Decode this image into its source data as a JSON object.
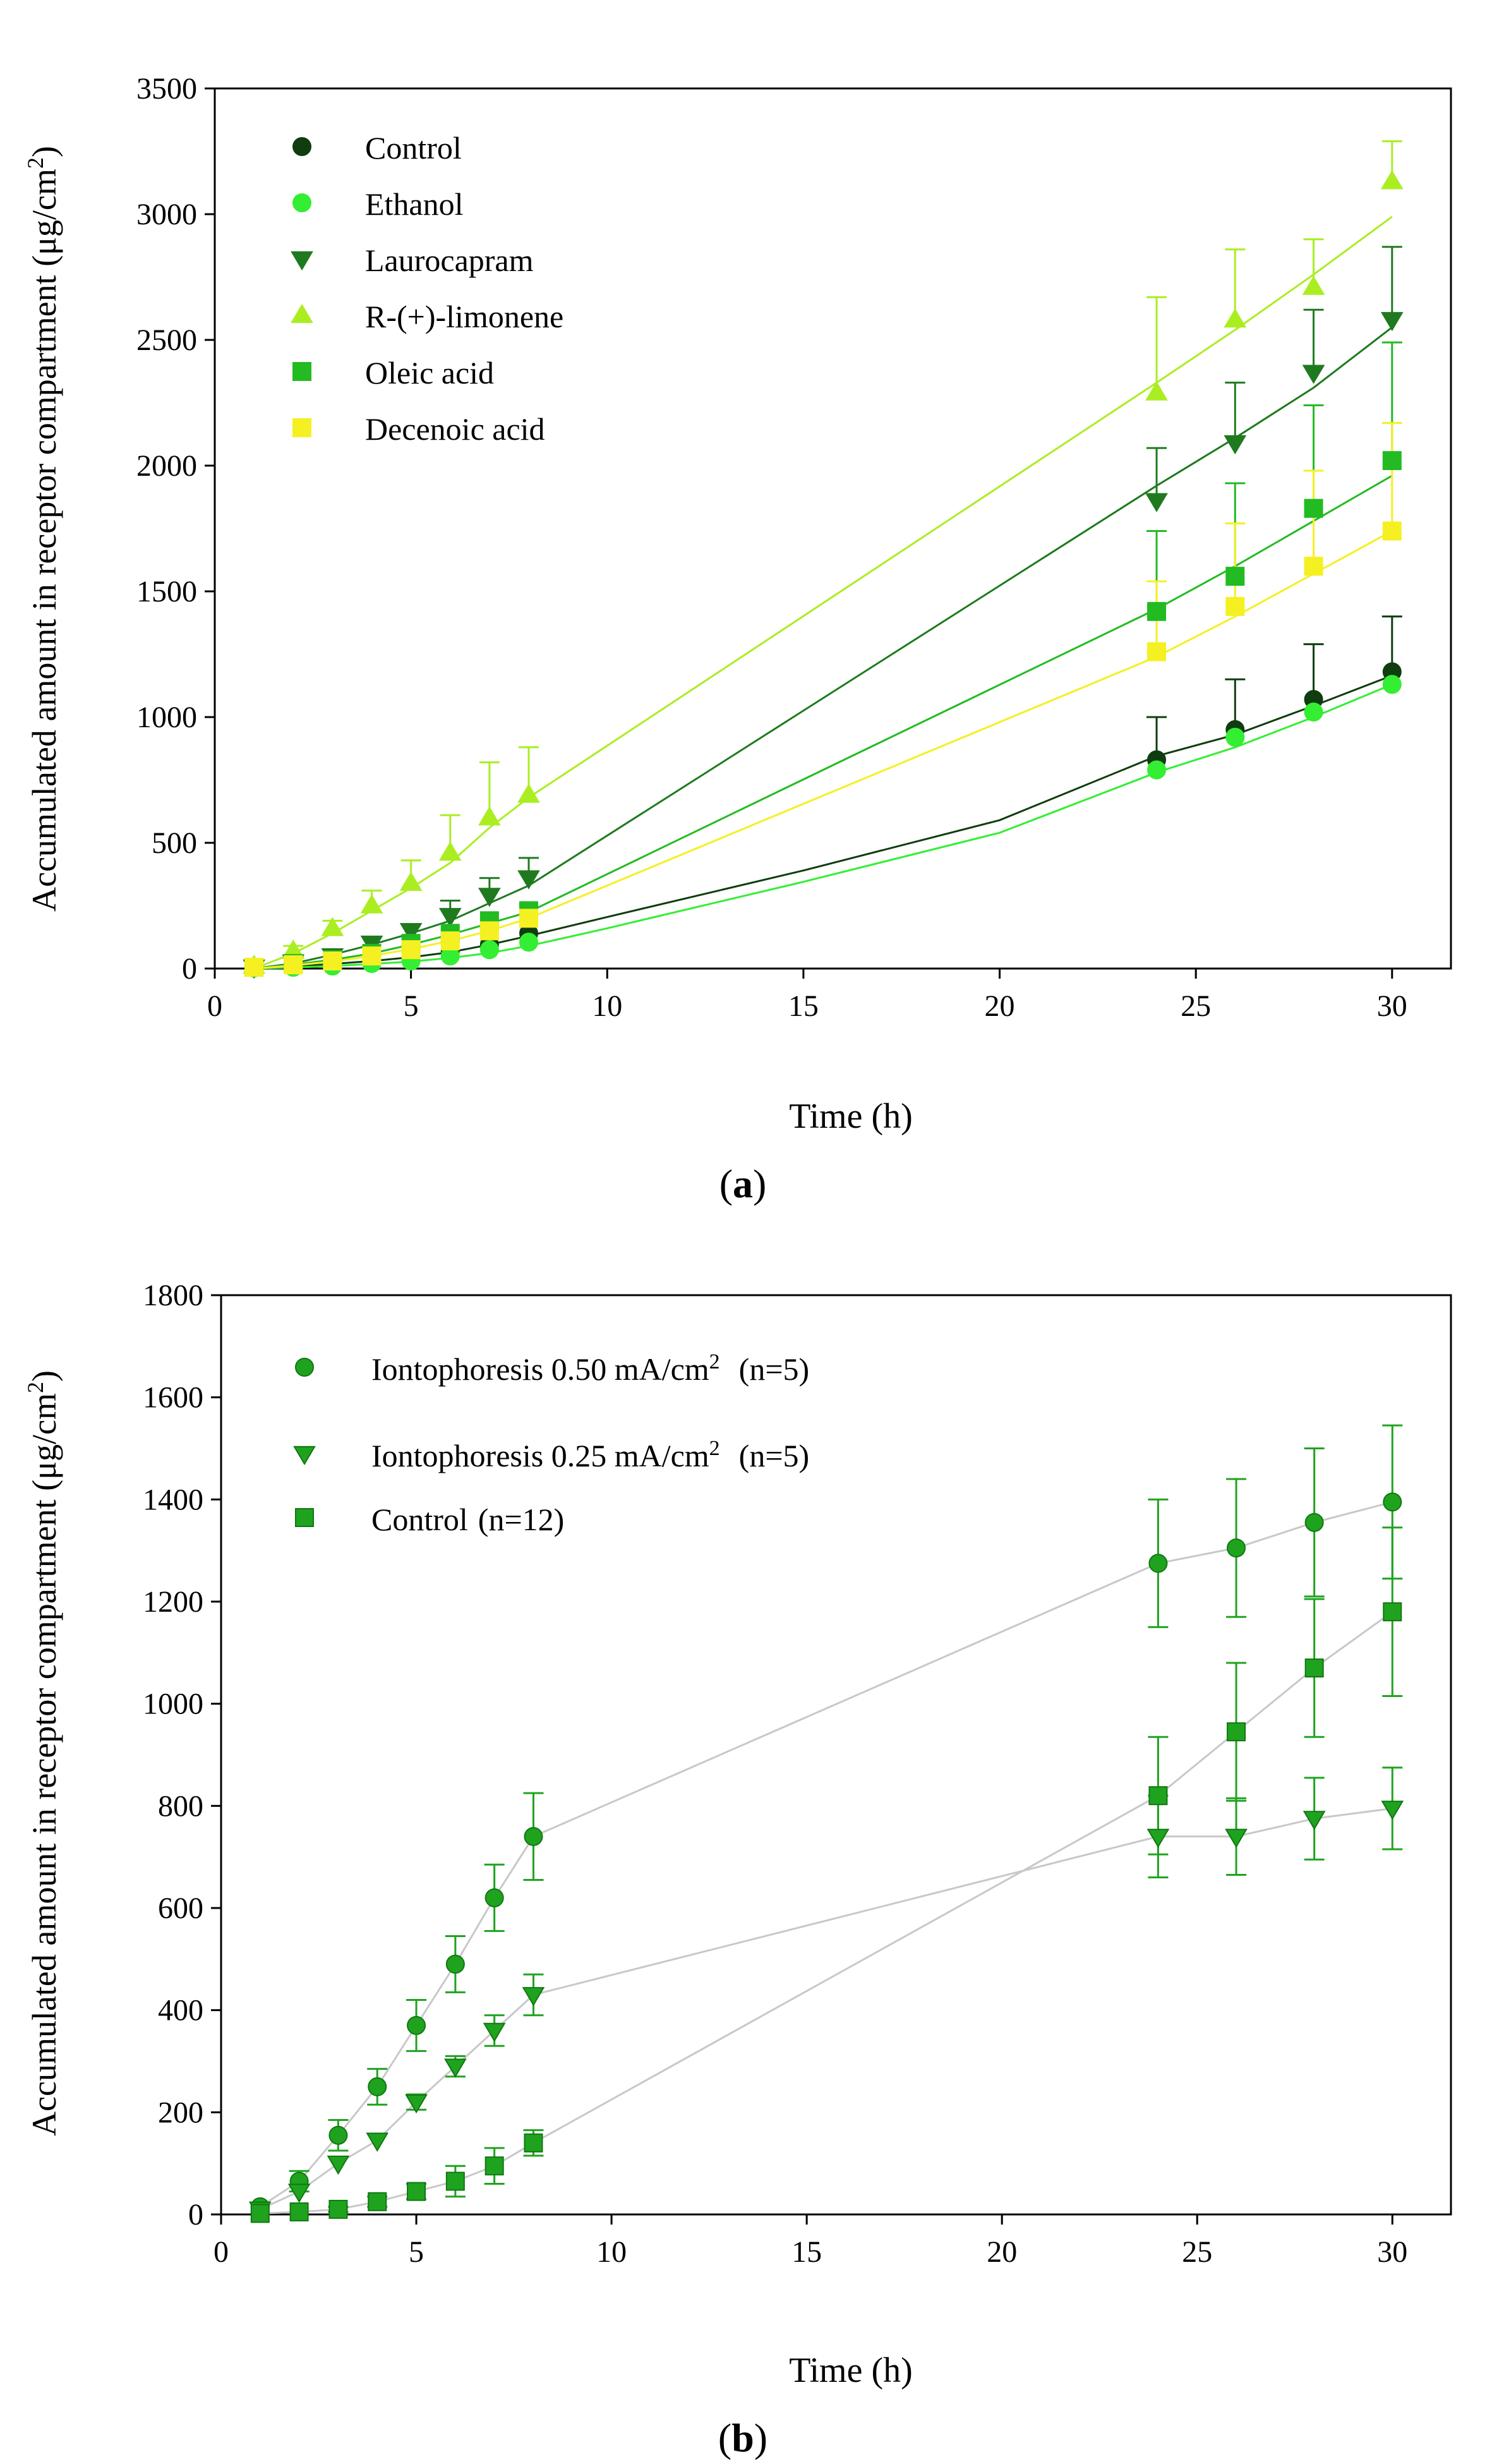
{
  "colors": {
    "control_dark": "#0f3d0f",
    "ethanol": "#33ee33",
    "laurocapram": "#1f7a1f",
    "limonene": "#aaee22",
    "oleic": "#22bb22",
    "decenoic": "#f5f022",
    "grey_line": "#c8c8c8",
    "green_b": "#1fa31f"
  },
  "chart_data": [
    {
      "type": "scatter",
      "panel_label": "a",
      "xlabel": "Time (h)",
      "ylabel": "Accumulated amount in receptor compartment (μg/cm",
      "ylabel_sup": "2",
      "ylabel_end": ")",
      "xlim": [
        0,
        31.5
      ],
      "ylim": [
        0,
        3500
      ],
      "xticks": [
        0,
        5,
        10,
        15,
        20,
        25,
        30
      ],
      "yticks": [
        0,
        500,
        1000,
        1500,
        2000,
        2500,
        3000,
        3500
      ],
      "x": [
        1,
        2,
        3,
        4,
        5,
        6,
        7,
        8,
        24,
        26,
        28,
        30
      ],
      "legend": [
        {
          "label": "Control",
          "marker": "circle",
          "color": "#0f3d0f"
        },
        {
          "label": "Ethanol",
          "marker": "circle",
          "color": "#33ee33"
        },
        {
          "label": "Laurocapram",
          "marker": "triangle-down",
          "color": "#1f7a1f"
        },
        {
          "label": "R-(+)-limonene",
          "marker": "triangle-up",
          "color": "#aaee22"
        },
        {
          "label": "Oleic acid",
          "marker": "square",
          "color": "#22bb22"
        },
        {
          "label": "Decenoic acid",
          "marker": "square",
          "color": "#f5f022"
        }
      ],
      "series": [
        {
          "name": "Control",
          "marker": "circle",
          "color": "#0f3d0f",
          "values": [
            5,
            10,
            15,
            25,
            45,
            70,
            95,
            140,
            830,
            950,
            1070,
            1180
          ],
          "err": [
            0,
            0,
            0,
            0,
            0,
            0,
            0,
            0,
            170,
            200,
            220,
            220
          ],
          "fit": [
            [
              1,
              0
            ],
            [
              2,
              8
            ],
            [
              3,
              18
            ],
            [
              4,
              30
            ],
            [
              5,
              45
            ],
            [
              6,
              65
            ],
            [
              7,
              95
            ],
            [
              8,
              130
            ],
            [
              10,
              205
            ],
            [
              15,
              390
            ],
            [
              20,
              590
            ],
            [
              24,
              845
            ],
            [
              26,
              930
            ],
            [
              28,
              1045
            ],
            [
              30,
              1165
            ]
          ]
        },
        {
          "name": "Ethanol",
          "marker": "circle",
          "color": "#33ee33",
          "values": [
            2,
            5,
            10,
            20,
            30,
            50,
            75,
            105,
            790,
            920,
            1020,
            1130
          ],
          "err": [
            0,
            0,
            0,
            0,
            0,
            0,
            0,
            0,
            0,
            0,
            0,
            0
          ],
          "fit": [
            [
              1,
              0
            ],
            [
              2,
              4
            ],
            [
              3,
              10
            ],
            [
              4,
              18
            ],
            [
              5,
              28
            ],
            [
              6,
              42
            ],
            [
              7,
              62
            ],
            [
              8,
              90
            ],
            [
              10,
              160
            ],
            [
              15,
              345
            ],
            [
              20,
              540
            ],
            [
              24,
              780
            ],
            [
              26,
              880
            ],
            [
              28,
              1000
            ],
            [
              30,
              1130
            ]
          ]
        },
        {
          "name": "Laurocapram",
          "marker": "triangle-down",
          "color": "#1f7a1f",
          "values": [
            5,
            25,
            50,
            100,
            150,
            210,
            290,
            360,
            1860,
            2090,
            2370,
            2580
          ],
          "err": [
            0,
            0,
            0,
            0,
            0,
            60,
            70,
            80,
            210,
            240,
            250,
            290
          ],
          "fit": [
            [
              1,
              0
            ],
            [
              2,
              20
            ],
            [
              3,
              55
            ],
            [
              4,
              95
            ],
            [
              5,
              140
            ],
            [
              6,
              190
            ],
            [
              7,
              260
            ],
            [
              8,
              330
            ],
            [
              24,
              1920
            ],
            [
              26,
              2110
            ],
            [
              28,
              2310
            ],
            [
              30,
              2550
            ]
          ]
        },
        {
          "name": "R-(+)-limonene",
          "marker": "triangle-up",
          "color": "#aaee22",
          "values": [
            10,
            70,
            160,
            250,
            340,
            460,
            600,
            690,
            2290,
            2580,
            2710,
            3130
          ],
          "err": [
            0,
            20,
            30,
            60,
            90,
            150,
            220,
            190,
            380,
            280,
            190,
            160
          ],
          "fit": [
            [
              1,
              0
            ],
            [
              2,
              60
            ],
            [
              3,
              140
            ],
            [
              4,
              230
            ],
            [
              5,
              320
            ],
            [
              6,
              420
            ],
            [
              7,
              560
            ],
            [
              8,
              680
            ],
            [
              24,
              2330
            ],
            [
              26,
              2540
            ],
            [
              28,
              2760
            ],
            [
              30,
              2990
            ]
          ]
        },
        {
          "name": "Oleic acid",
          "marker": "square",
          "color": "#22bb22",
          "values": [
            5,
            20,
            35,
            60,
            100,
            140,
            190,
            230,
            1420,
            1560,
            1830,
            2020
          ],
          "err": [
            0,
            0,
            0,
            0,
            0,
            0,
            0,
            0,
            320,
            370,
            410,
            470
          ],
          "fit": [
            [
              1,
              0
            ],
            [
              2,
              15
            ],
            [
              3,
              35
            ],
            [
              4,
              60
            ],
            [
              5,
              95
            ],
            [
              6,
              135
            ],
            [
              7,
              180
            ],
            [
              8,
              225
            ],
            [
              24,
              1430
            ],
            [
              26,
              1600
            ],
            [
              28,
              1780
            ],
            [
              30,
              1960
            ]
          ]
        },
        {
          "name": "Decenoic acid",
          "marker": "square",
          "color": "#f5f022",
          "values": [
            5,
            15,
            30,
            50,
            75,
            110,
            150,
            200,
            1260,
            1440,
            1600,
            1740
          ],
          "err": [
            0,
            0,
            0,
            0,
            0,
            0,
            0,
            0,
            280,
            330,
            380,
            430
          ],
          "fit": [
            [
              1,
              0
            ],
            [
              2,
              12
            ],
            [
              3,
              28
            ],
            [
              4,
              50
            ],
            [
              5,
              78
            ],
            [
              6,
              110
            ],
            [
              7,
              150
            ],
            [
              8,
              200
            ],
            [
              24,
              1240
            ],
            [
              26,
              1400
            ],
            [
              28,
              1570
            ],
            [
              30,
              1740
            ]
          ]
        }
      ]
    },
    {
      "type": "line",
      "panel_label": "b",
      "xlabel": "Time (h)",
      "ylabel": "Accumulated amount in receptor compartment (μg/cm",
      "ylabel_sup": "2",
      "ylabel_end": ")",
      "xlim": [
        0,
        31.5
      ],
      "ylim": [
        0,
        1800
      ],
      "xticks": [
        0,
        5,
        10,
        15,
        20,
        25,
        30
      ],
      "yticks": [
        0,
        200,
        400,
        600,
        800,
        1000,
        1200,
        1400,
        1600,
        1800
      ],
      "x": [
        1,
        2,
        3,
        4,
        5,
        6,
        7,
        8,
        24,
        26,
        28,
        30
      ],
      "legend": [
        {
          "label": "Iontophoresis 0.50 mA/cm",
          "sup": "2",
          "suffix": "(n=5)",
          "marker": "circle"
        },
        {
          "label": "Iontophoresis 0.25 mA/cm",
          "sup": "2",
          "suffix": "(n=5)",
          "marker": "triangle-down"
        },
        {
          "label": "Control",
          "sup": "",
          "suffix": "(n=12)",
          "marker": "square"
        }
      ],
      "series": [
        {
          "name": "Iontophoresis 0.50 mA/cm2 (n=5)",
          "marker": "circle",
          "values": [
            15,
            65,
            155,
            250,
            370,
            490,
            620,
            740,
            1275,
            1305,
            1355,
            1395
          ],
          "err": [
            0,
            20,
            30,
            35,
            50,
            55,
            65,
            85,
            125,
            135,
            145,
            150
          ]
        },
        {
          "name": "Iontophoresis 0.25 mA/cm2 (n=5)",
          "marker": "triangle-down",
          "values": [
            10,
            45,
            100,
            145,
            220,
            290,
            360,
            430,
            740,
            740,
            775,
            795
          ],
          "err": [
            0,
            0,
            0,
            0,
            15,
            20,
            30,
            40,
            80,
            75,
            80,
            80
          ]
        },
        {
          "name": "Control (n=12)",
          "marker": "square",
          "values": [
            2,
            5,
            10,
            25,
            45,
            65,
            95,
            140,
            820,
            945,
            1070,
            1180
          ],
          "err": [
            0,
            0,
            5,
            10,
            15,
            30,
            35,
            25,
            115,
            135,
            135,
            165
          ]
        }
      ]
    }
  ]
}
